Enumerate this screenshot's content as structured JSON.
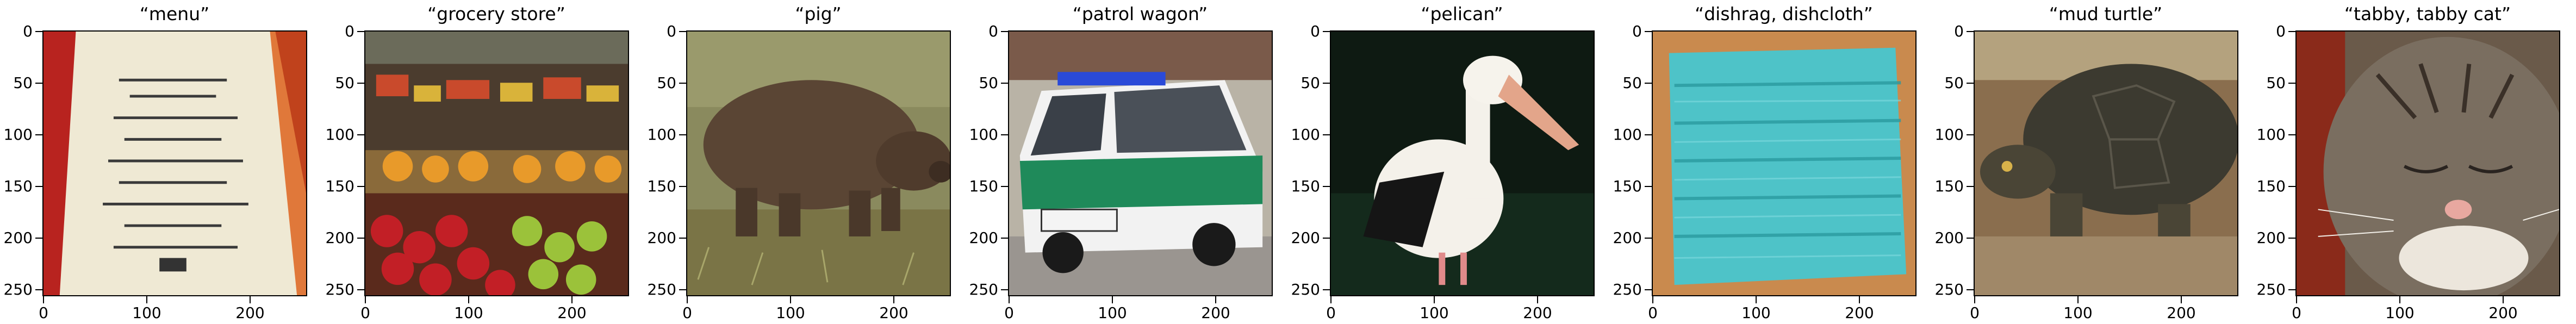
{
  "figure": {
    "panels": [
      {
        "label": "“menu”"
      },
      {
        "label": "“grocery store”"
      },
      {
        "label": "“pig”"
      },
      {
        "label": "“patrol wagon”"
      },
      {
        "label": "“pelican”"
      },
      {
        "label": "“dishrag, dishcloth”"
      },
      {
        "label": "“mud turtle”"
      },
      {
        "label": "“tabby, tabby cat”"
      }
    ],
    "y_ticks": [
      "0",
      "50",
      "100",
      "150",
      "200",
      "250"
    ],
    "x_ticks": [
      "0",
      "100",
      "200"
    ]
  }
}
